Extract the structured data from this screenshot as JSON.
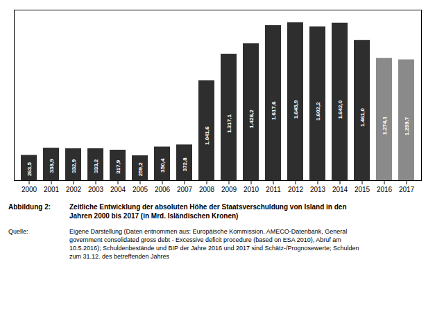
{
  "chart_data": {
    "type": "bar",
    "categories": [
      "2000",
      "2001",
      "2002",
      "2003",
      "2004",
      "2005",
      "2006",
      "2007",
      "2008",
      "2009",
      "2010",
      "2011",
      "2012",
      "2013",
      "2014",
      "2015",
      "2016",
      "2017"
    ],
    "values": [
      263.5,
      338.9,
      332.9,
      333.2,
      317.9,
      259.2,
      350.4,
      372.8,
      1041.6,
      1317.1,
      1428.2,
      1617.6,
      1645.9,
      1602.2,
      1642.0,
      1461.0,
      1274.1,
      1259.7
    ],
    "value_labels": [
      "263,5",
      "338,9",
      "332,9",
      "333,2",
      "317,9",
      "259,2",
      "350,4",
      "372,8",
      "1.041,6",
      "1.317,1",
      "1.428,2",
      "1.617,6",
      "1.645,9",
      "1.602,2",
      "1.642,0",
      "1.461,0",
      "1.274,1",
      "1.259,7"
    ],
    "colors": [
      "#2e2e2e",
      "#2e2e2e",
      "#2e2e2e",
      "#2e2e2e",
      "#2e2e2e",
      "#2e2e2e",
      "#2e2e2e",
      "#2e2e2e",
      "#2e2e2e",
      "#2e2e2e",
      "#2e2e2e",
      "#2e2e2e",
      "#2e2e2e",
      "#2e2e2e",
      "#2e2e2e",
      "#2e2e2e",
      "#8a8a8a",
      "#8a8a8a"
    ],
    "data_labels": true,
    "ylim": [
      0,
      1777.572
    ],
    "tick_labels": "x",
    "grid": false,
    "annotations": [
      {
        "label": "Abbildung 2:",
        "text": "Zeitliche Entwicklung der absoluten Höhe der Staatsverschuldung von Island in den\nJahren 2000 bis 2017 (in Mrd. Isländischen Kronen)"
      },
      {
        "label": "Quelle:",
        "text": "Eigene Darstellung (Daten entnommen aus: Europäische Kommission, AMECO-Datenbank, General\ngovernment consolidated gross debt - Excessive deficit procedure (based on ESA 2010), Abruf am\n10.5.2016); Schuldenbestände und BIP der Jahre 2016 und 2017 sind Schätz-/Prognosewerte; Schulden\nzum 31.12. des betreffenden Jahres"
      }
    ]
  }
}
